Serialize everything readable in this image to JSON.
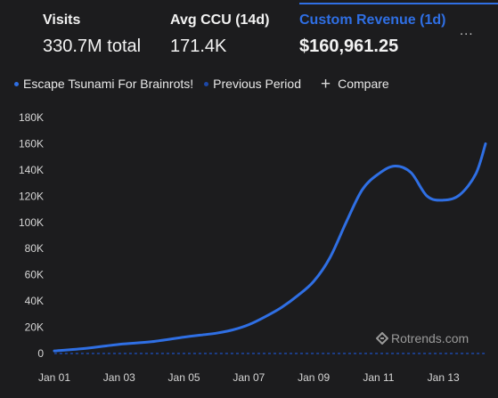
{
  "metrics": {
    "visits": {
      "label": "Visits",
      "value": "330.7M total"
    },
    "ccu": {
      "label": "Avg CCU (14d)",
      "value": "171.4K"
    },
    "revenue": {
      "label": "Custom Revenue (1d)",
      "value": "$160,961.25"
    },
    "more": "..."
  },
  "legend": {
    "current": "Escape Tsunami For Brainrots!",
    "previous": "Previous Period",
    "compare": "Compare"
  },
  "watermark": "Rotrends.com",
  "colors": {
    "accent": "#2f6fe4",
    "previous": "#1d48a8"
  },
  "chart_data": {
    "type": "line",
    "x_tick_labels": [
      "Jan 01",
      "Jan 03",
      "Jan 05",
      "Jan 07",
      "Jan 09",
      "Jan 11",
      "Jan 13"
    ],
    "y_tick_labels": [
      "0",
      "20K",
      "40K",
      "60K",
      "80K",
      "100K",
      "120K",
      "140K",
      "160K",
      "180K"
    ],
    "ylim": [
      0,
      180000
    ],
    "xlim": [
      0,
      13.3
    ],
    "grid": false,
    "legend_position": "top-left",
    "series": [
      {
        "name": "Escape Tsunami For Brainrots!",
        "x": [
          0,
          1,
          2,
          3,
          4,
          4.5,
          5,
          5.5,
          6,
          6.5,
          7,
          7.5,
          8,
          8.5,
          9,
          9.5,
          10,
          10.5,
          11,
          11.5,
          12,
          12.5,
          13,
          13.3
        ],
        "y": [
          2000,
          4000,
          7000,
          9000,
          12500,
          14000,
          15500,
          18000,
          22000,
          28000,
          35000,
          44000,
          55000,
          73000,
          100000,
          125000,
          137000,
          143000,
          138000,
          120000,
          117000,
          121000,
          137000,
          160000
        ]
      },
      {
        "name": "Previous Period",
        "x": [
          0,
          13.3
        ],
        "y": [
          0,
          0
        ]
      }
    ]
  }
}
